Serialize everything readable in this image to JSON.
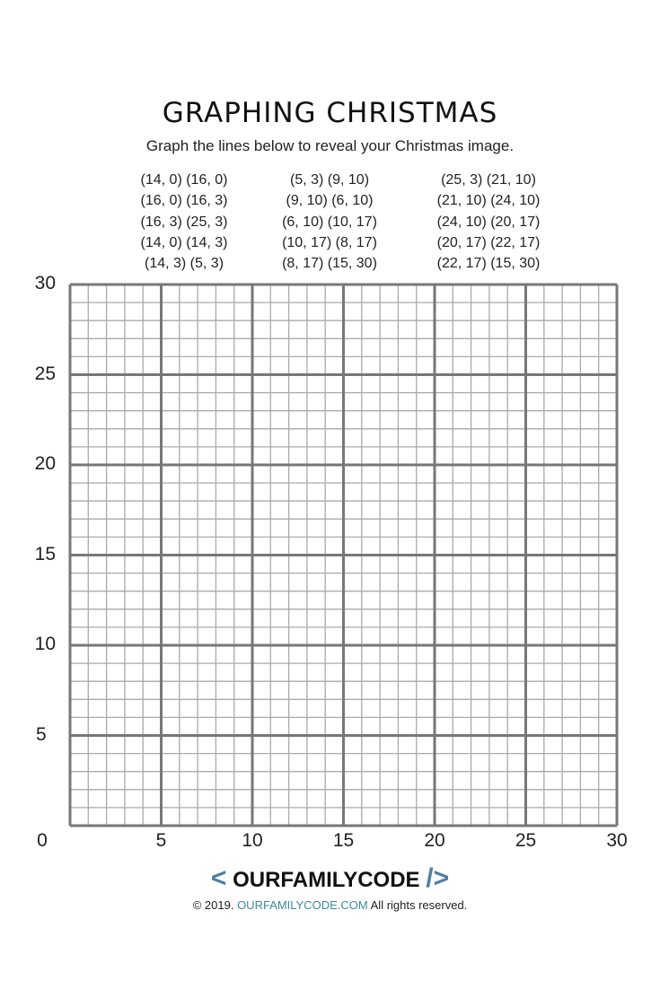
{
  "title": "GRAPHING CHRISTMAS",
  "subtitle": "Graph the lines below to reveal your Christmas image.",
  "columns": [
    [
      "(14, 0) (16, 0)",
      "(16, 0) (16, 3)",
      "(16, 3) (25, 3)",
      "(14, 0) (14, 3)",
      "(14, 3) (5, 3)"
    ],
    [
      "(5, 3) (9, 10)",
      "(9, 10) (6, 10)",
      "(6, 10) (10, 17)",
      "(10, 17) (8, 17)",
      "(8, 17) (15, 30)"
    ],
    [
      "(25, 3) (21, 10)",
      "(21, 10) (24, 10)",
      "(24, 10) (20, 17)",
      "(20, 17) (22, 17)",
      "(22, 17) (15, 30)"
    ]
  ],
  "grid": {
    "x_range": [
      0,
      30
    ],
    "y_range": [
      0,
      30
    ],
    "minor_step": 1,
    "major_step": 5,
    "x_labels": [
      "0",
      "5",
      "10",
      "15",
      "20",
      "25",
      "30"
    ],
    "y_labels": [
      "5",
      "10",
      "15",
      "20",
      "25",
      "30"
    ],
    "major_color": "#777777",
    "minor_color": "#aaaaaa"
  },
  "footer": {
    "logo_left": "<",
    "logo_text": "OURFAMILYCODE",
    "logo_right": "/>",
    "copyright_prefix": "© 2019.",
    "site": "OURFAMILYCODE.COM",
    "copyright_suffix": "All rights reserved."
  }
}
